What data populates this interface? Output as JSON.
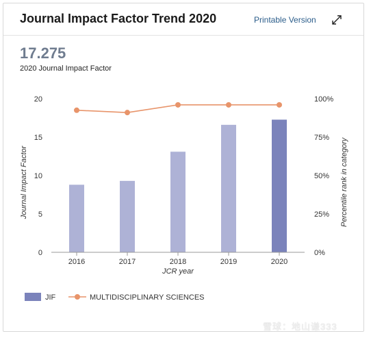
{
  "header": {
    "title": "Journal Impact Factor Trend 2020",
    "printable_label": "Printable Version",
    "expand_icon": "expand-icon"
  },
  "summary": {
    "value": "17.275",
    "caption": "2020 Journal Impact Factor"
  },
  "chart_data": {
    "type": "bar",
    "categories": [
      "2016",
      "2017",
      "2018",
      "2019",
      "2020"
    ],
    "series": [
      {
        "name": "JIF",
        "type": "bar",
        "axis": "left",
        "values": [
          8.8,
          9.3,
          13.1,
          16.6,
          17.275
        ],
        "colors": [
          "#aeb2d6",
          "#aeb2d6",
          "#aeb2d6",
          "#aeb2d6",
          "#7b83bb"
        ]
      },
      {
        "name": "MULTIDISCIPLINARY SCIENCES",
        "type": "line",
        "axis": "right",
        "values": [
          92.5,
          91,
          96,
          96,
          96
        ],
        "color": "#e8946a"
      }
    ],
    "xlabel": "JCR year",
    "ylabel": "Journal Impact Factor",
    "y2label": "Percentile rank in category",
    "ylim": [
      0,
      20
    ],
    "yticks": [
      "0",
      "5",
      "10",
      "15",
      "20"
    ],
    "y2lim": [
      0,
      100
    ],
    "y2ticks": [
      "0%",
      "25%",
      "50%",
      "75%",
      "100%"
    ],
    "grid": false,
    "legend": "bottom-left"
  },
  "watermark": "雪球：地山谦333"
}
